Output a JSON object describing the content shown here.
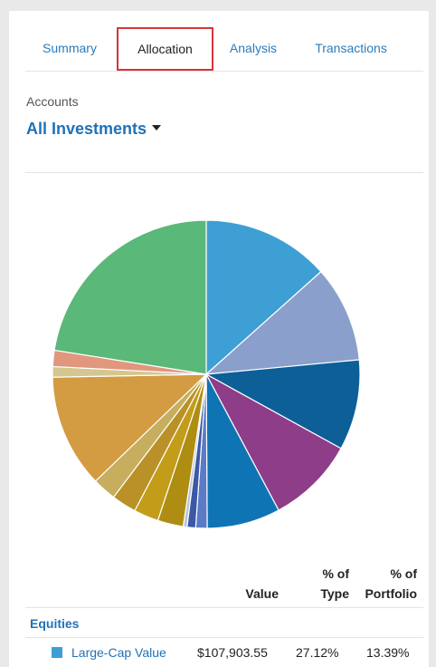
{
  "tabs": [
    {
      "label": "Summary"
    },
    {
      "label": "Allocation"
    },
    {
      "label": "Analysis"
    },
    {
      "label": "Transactions"
    }
  ],
  "accounts": {
    "label": "Accounts",
    "selected": "All Investments"
  },
  "table": {
    "headers": {
      "value": "Value",
      "pct_type_line1": "% of",
      "pct_type_line2": "Type",
      "pct_portfolio_line1": "% of",
      "pct_portfolio_line2": "Portfolio"
    },
    "section": "Equities",
    "rows": [
      {
        "name": "Large-Cap Value",
        "value": "$107,903.55",
        "pct_type": "27.12%",
        "pct_portfolio": "13.39%",
        "color": "#3e9fd4"
      }
    ]
  },
  "chart_data": {
    "type": "pie",
    "title": "",
    "slices": [
      {
        "value": 13.4,
        "color": "#3e9fd4"
      },
      {
        "value": 10.1,
        "color": "#8b9fcc"
      },
      {
        "value": 9.5,
        "color": "#0d5f98"
      },
      {
        "value": 9.2,
        "color": "#8e3d88"
      },
      {
        "value": 7.7,
        "color": "#0f74b4"
      },
      {
        "value": 1.2,
        "color": "#5b7bc7"
      },
      {
        "value": 0.9,
        "color": "#3c58a6"
      },
      {
        "value": 0.4,
        "color": "#b8c5dc"
      },
      {
        "value": 2.7,
        "color": "#ae8d12"
      },
      {
        "value": 2.6,
        "color": "#c39d1a"
      },
      {
        "value": 2.6,
        "color": "#b99128"
      },
      {
        "value": 2.5,
        "color": "#c6ae5e"
      },
      {
        "value": 11.9,
        "color": "#d39b42"
      },
      {
        "value": 1.1,
        "color": "#d4c68e"
      },
      {
        "value": 1.7,
        "color": "#e0977e"
      },
      {
        "value": 22.5,
        "color": "#5ab878"
      }
    ]
  }
}
